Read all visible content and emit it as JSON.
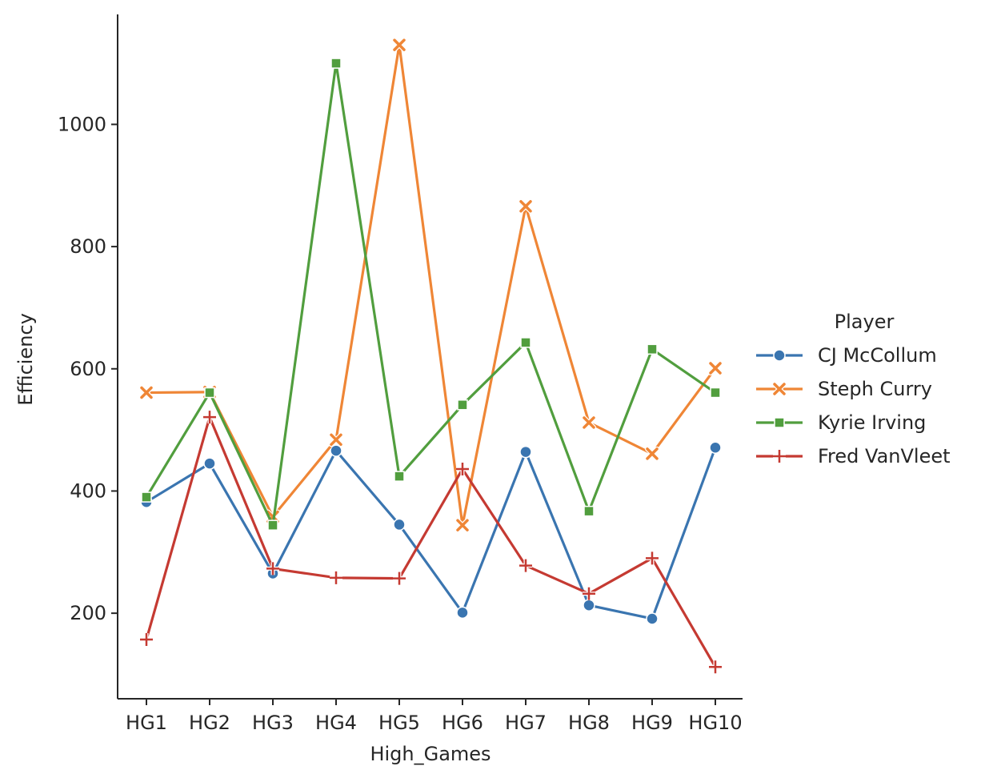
{
  "chart_data": {
    "type": "line",
    "title": "",
    "xlabel": "High_Games",
    "ylabel": "Efficiency",
    "categories": [
      "HG1",
      "HG2",
      "HG3",
      "HG4",
      "HG5",
      "HG6",
      "HG7",
      "HG8",
      "HG9",
      "HG10"
    ],
    "ylim": [
      60,
      1180
    ],
    "yticks": [
      200,
      400,
      600,
      800,
      1000
    ],
    "grid": false,
    "legend": {
      "title": "Player",
      "placement": "right"
    },
    "series": [
      {
        "name": "CJ McCollum",
        "color": "#3a75b0",
        "marker": "circle",
        "values": [
          382,
          445,
          265,
          466,
          345,
          201,
          464,
          213,
          191,
          471
        ]
      },
      {
        "name": "Steph Curry",
        "color": "#ef8636",
        "marker": "x",
        "values": [
          561,
          562,
          358,
          484,
          1130,
          344,
          866,
          512,
          461,
          601
        ]
      },
      {
        "name": "Kyrie Irving",
        "color": "#519e3e",
        "marker": "square",
        "values": [
          390,
          561,
          344,
          1100,
          424,
          541,
          643,
          367,
          632,
          561
        ]
      },
      {
        "name": "Fred VanVleet",
        "color": "#c53a32",
        "marker": "plus",
        "values": [
          157,
          521,
          273,
          258,
          257,
          436,
          278,
          232,
          290,
          112
        ]
      }
    ]
  }
}
